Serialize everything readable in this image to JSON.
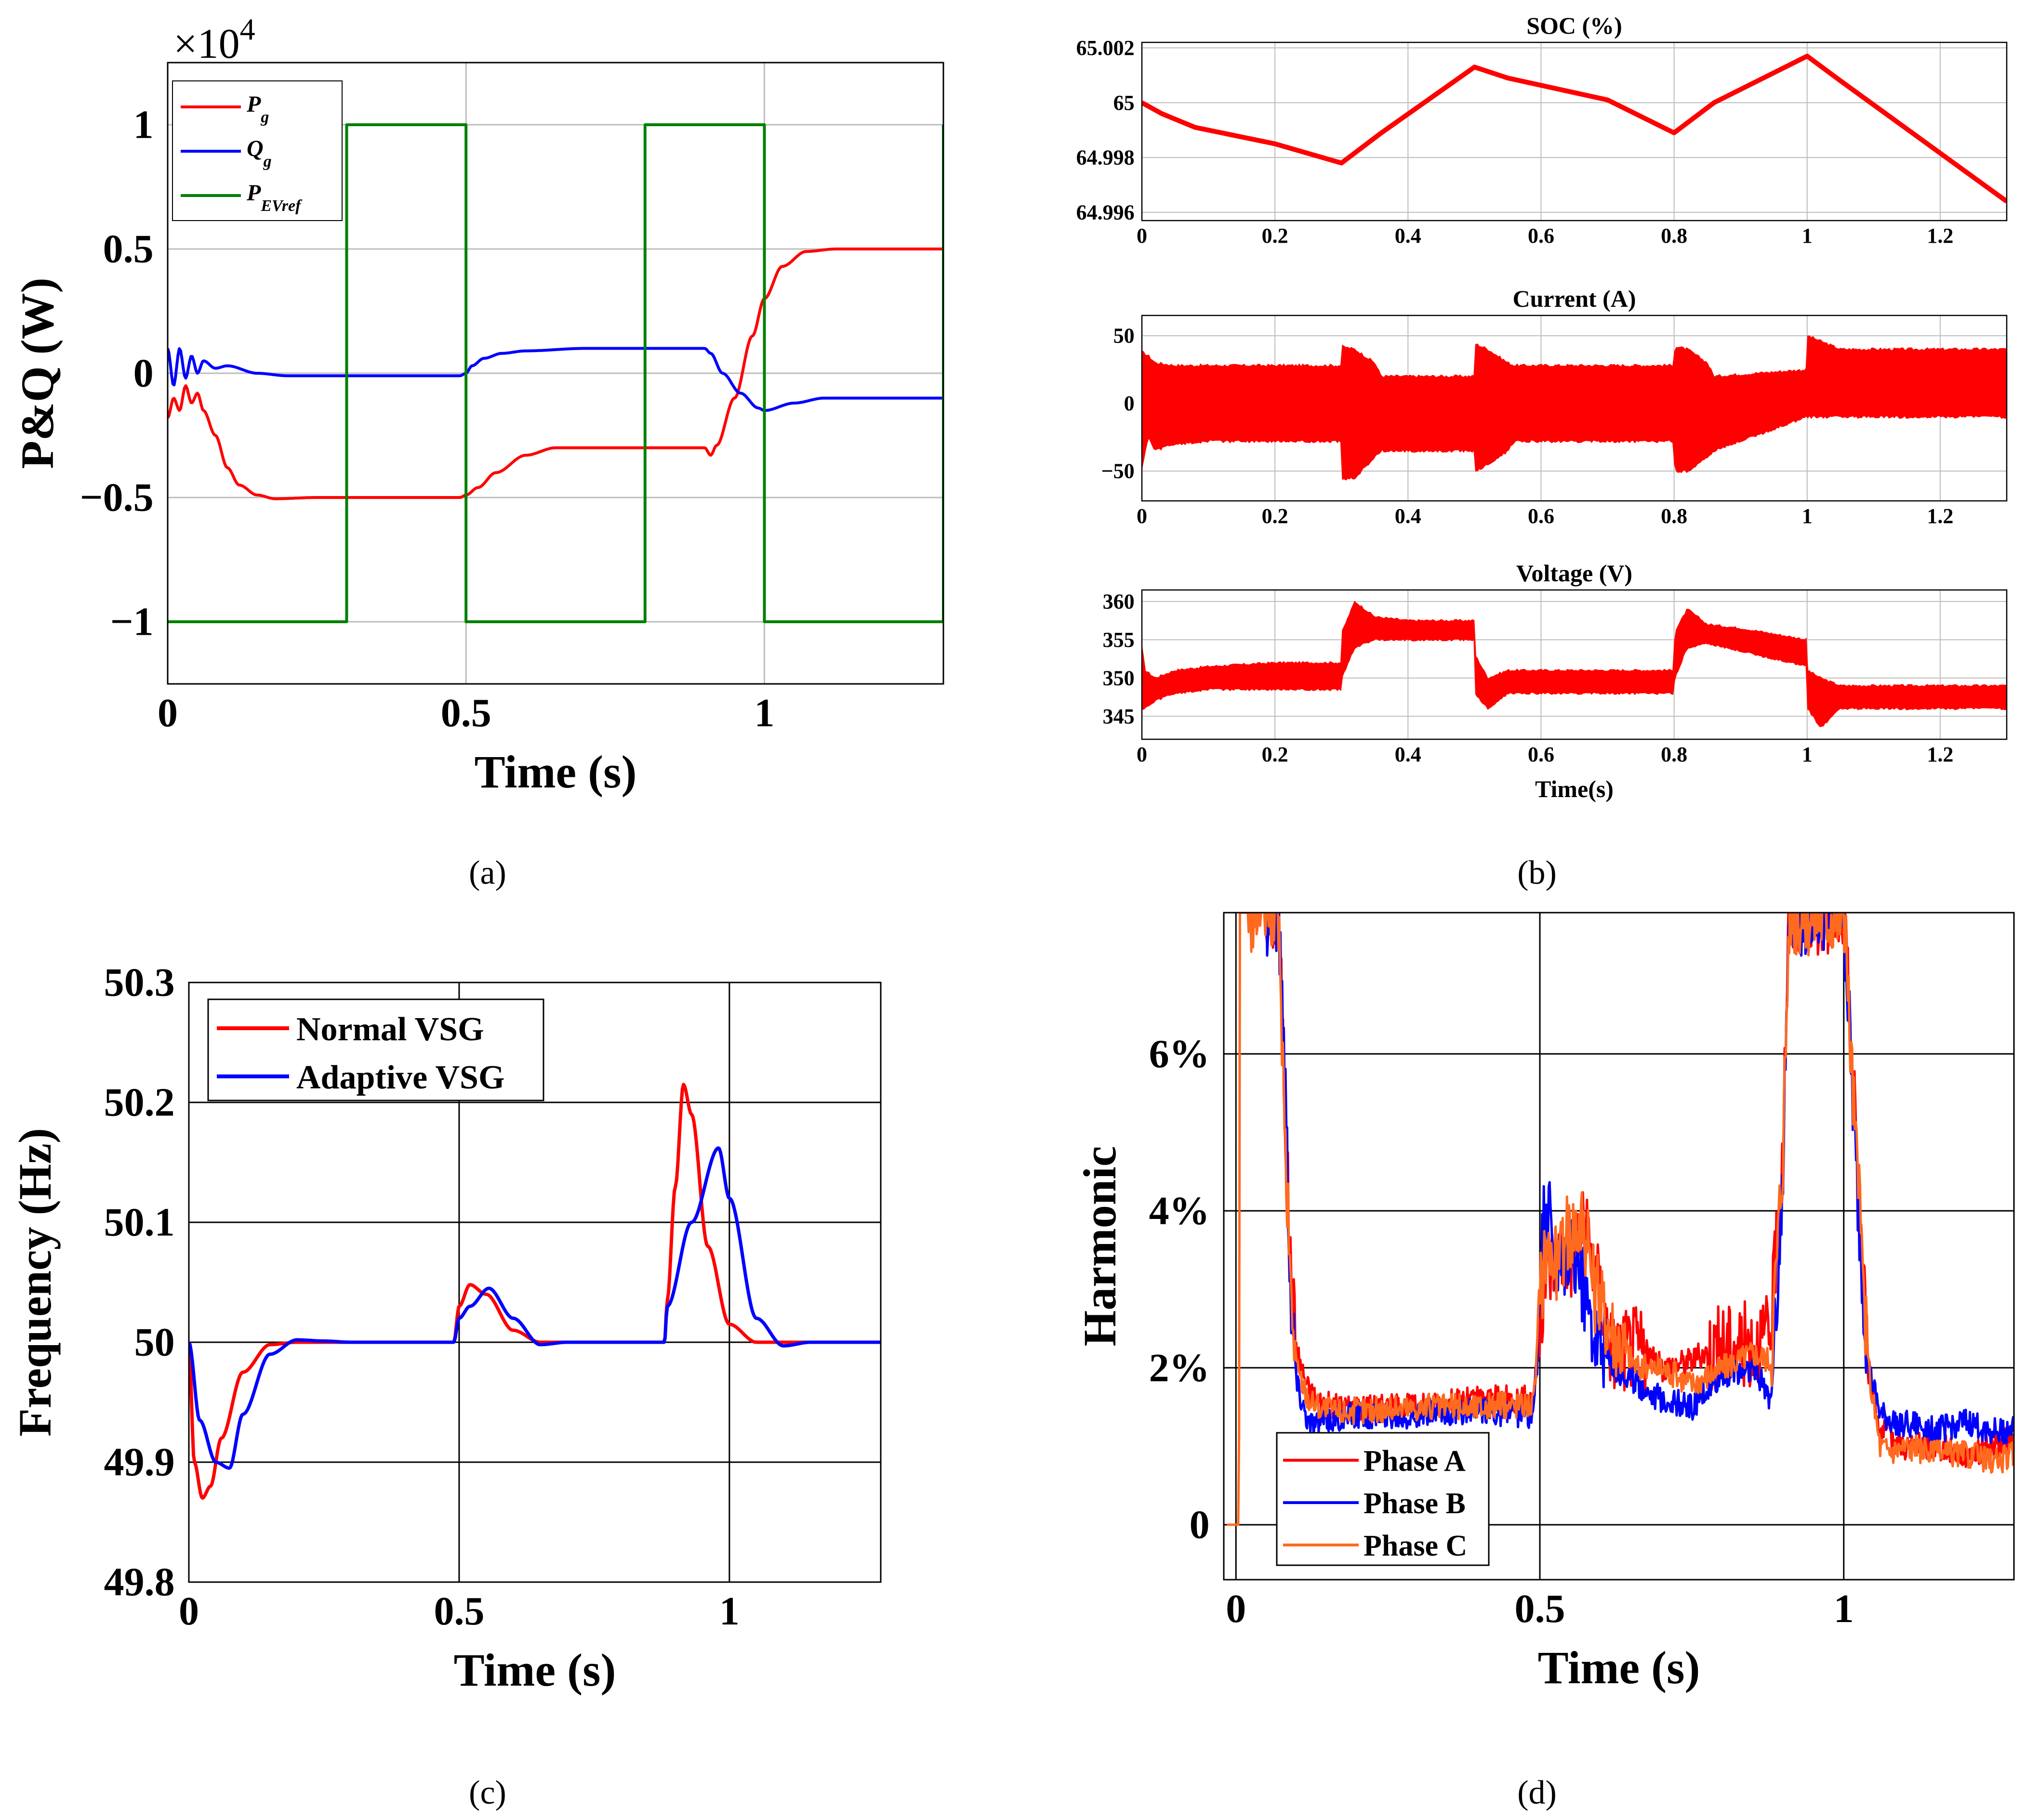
{
  "panel_labels": [
    "(a)",
    "(b)",
    "(c)",
    "(d)"
  ],
  "colors": {
    "red": "#ff0000",
    "blue": "#0000ff",
    "green": "#008000",
    "orange": "#ff6a1f",
    "axis": "#000000",
    "grid": "#bdbdbd"
  },
  "chart_data": [
    {
      "id": "a",
      "type": "line",
      "title": "",
      "xlabel": "Time (s)",
      "ylabel": "P&Q (W)",
      "exponent_label": "×10",
      "exponent_power": "4",
      "xlim": [
        0,
        1.3
      ],
      "ylim": [
        -1.25,
        1.25
      ],
      "xticks": [
        0,
        0.5,
        1
      ],
      "xtick_labels": [
        "0",
        "0.5",
        "1"
      ],
      "yticks": [
        -1,
        -0.5,
        0,
        0.5,
        1
      ],
      "ytick_labels": [
        "−1",
        "−0.5",
        "0",
        "0.5",
        "1"
      ],
      "grid": true,
      "legend_position": "top-left",
      "series": [
        {
          "name": "P_g",
          "label_main": "P",
          "label_sub": "g",
          "color": "#ff0000",
          "style": "smooth",
          "x": [
            0,
            0.01,
            0.02,
            0.03,
            0.04,
            0.05,
            0.06,
            0.08,
            0.1,
            0.12,
            0.15,
            0.18,
            0.25,
            0.35,
            0.45,
            0.49,
            0.5,
            0.52,
            0.55,
            0.6,
            0.65,
            0.75,
            0.85,
            0.9,
            0.91,
            0.92,
            0.95,
            0.98,
            1.0,
            1.03,
            1.07,
            1.12,
            1.2,
            1.3
          ],
          "y": [
            -0.18,
            -0.1,
            -0.15,
            -0.05,
            -0.12,
            -0.08,
            -0.15,
            -0.25,
            -0.38,
            -0.45,
            -0.49,
            -0.505,
            -0.5,
            -0.5,
            -0.5,
            -0.5,
            -0.49,
            -0.46,
            -0.4,
            -0.33,
            -0.3,
            -0.3,
            -0.3,
            -0.3,
            -0.33,
            -0.29,
            -0.1,
            0.15,
            0.3,
            0.43,
            0.49,
            0.5,
            0.5,
            0.5
          ]
        },
        {
          "name": "Q_g",
          "label_main": "Q",
          "label_sub": "g",
          "color": "#0000ff",
          "style": "smooth",
          "x": [
            0,
            0.01,
            0.02,
            0.03,
            0.04,
            0.05,
            0.06,
            0.08,
            0.1,
            0.15,
            0.2,
            0.3,
            0.4,
            0.49,
            0.5,
            0.51,
            0.53,
            0.56,
            0.6,
            0.7,
            0.8,
            0.9,
            0.91,
            0.93,
            0.96,
            0.99,
            1.0,
            1.05,
            1.1,
            1.2,
            1.3
          ],
          "y": [
            0.1,
            -0.05,
            0.1,
            -0.02,
            0.07,
            0.0,
            0.05,
            0.02,
            0.03,
            0.0,
            -0.01,
            -0.01,
            -0.01,
            -0.01,
            0.0,
            0.03,
            0.06,
            0.08,
            0.09,
            0.1,
            0.1,
            0.1,
            0.08,
            0.0,
            -0.08,
            -0.14,
            -0.15,
            -0.12,
            -0.1,
            -0.1,
            -0.1
          ]
        },
        {
          "name": "P_EVref",
          "label_main": "P",
          "label_sub": "EVref",
          "color": "#008000",
          "style": "step",
          "x": [
            0,
            0.3,
            0.3,
            0.5,
            0.5,
            0.8,
            0.8,
            1.0,
            1.0,
            1.3,
            1.3
          ],
          "y": [
            -1,
            -1,
            1,
            1,
            -1,
            -1,
            1,
            1,
            -1,
            -1,
            1
          ]
        }
      ]
    },
    {
      "id": "b1",
      "type": "line",
      "title": "SOC (%)",
      "xlabel": "",
      "ylabel": "",
      "xlim": [
        0,
        1.3
      ],
      "ylim": [
        64.9957,
        65.0022
      ],
      "xticks": [
        0,
        0.2,
        0.4,
        0.6,
        0.8,
        1,
        1.2
      ],
      "xtick_labels": [
        "0",
        "0.2",
        "0.4",
        "0.6",
        "0.8",
        "1",
        "1.2"
      ],
      "yticks": [
        64.996,
        64.998,
        65,
        65.002
      ],
      "ytick_labels": [
        "64.996",
        "64.998",
        "65",
        "65.002"
      ],
      "grid": true,
      "series": [
        {
          "name": "SOC",
          "color": "#ff0000",
          "style": "linear",
          "x": [
            0,
            0.03,
            0.08,
            0.2,
            0.3,
            0.36,
            0.5,
            0.55,
            0.7,
            0.8,
            0.86,
            1.0,
            1.05,
            1.3
          ],
          "y": [
            65.0,
            64.9996,
            64.9991,
            64.9985,
            64.9978,
            64.9989,
            65.0013,
            65.0009,
            65.0001,
            64.9989,
            65.0,
            65.0017,
            65.0008,
            64.9964
          ]
        }
      ]
    },
    {
      "id": "b2",
      "type": "area",
      "title": "Current (A)",
      "xlabel": "",
      "ylabel": "",
      "xlim": [
        0,
        1.3
      ],
      "ylim": [
        -72,
        65
      ],
      "xticks": [
        0,
        0.2,
        0.4,
        0.6,
        0.8,
        1,
        1.2
      ],
      "xtick_labels": [
        "0",
        "0.2",
        "0.4",
        "0.6",
        "0.8",
        "1",
        "1.2"
      ],
      "yticks": [
        -50,
        0,
        50
      ],
      "ytick_labels": [
        "−50",
        "0",
        "50"
      ],
      "grid": true,
      "series": [
        {
          "name": "Current band",
          "color": "#ff0000",
          "x": [
            0,
            0.01,
            0.02,
            0.05,
            0.1,
            0.3,
            0.301,
            0.32,
            0.35,
            0.36,
            0.5,
            0.501,
            0.52,
            0.55,
            0.56,
            0.8,
            0.801,
            0.82,
            0.85,
            0.86,
            1.0,
            1.001,
            1.02,
            1.05,
            1.06,
            1.3
          ],
          "upper": [
            38,
            35,
            30,
            28,
            28,
            28,
            42,
            40,
            30,
            20,
            20,
            44,
            40,
            30,
            28,
            28,
            42,
            40,
            30,
            20,
            25,
            50,
            46,
            40,
            40,
            40
          ],
          "lower": [
            -47,
            -25,
            -35,
            -30,
            -28,
            -28,
            -57,
            -55,
            -40,
            -35,
            -35,
            -50,
            -45,
            -35,
            -28,
            -28,
            -50,
            -50,
            -40,
            -35,
            -10,
            -10,
            -10,
            -10,
            -10,
            -10
          ]
        }
      ]
    },
    {
      "id": "b3",
      "type": "area",
      "title": "Voltage (V)",
      "xlabel": "Time(s)",
      "ylabel": "",
      "xlim": [
        0,
        1.3
      ],
      "ylim": [
        342,
        361.5
      ],
      "xticks": [
        0,
        0.2,
        0.4,
        0.6,
        0.8,
        1,
        1.2
      ],
      "xtick_labels": [
        "0",
        "0.2",
        "0.4",
        "0.6",
        "0.8",
        "1",
        "1.2"
      ],
      "yticks": [
        345,
        350,
        355,
        360
      ],
      "ytick_labels": [
        "345",
        "350",
        "355",
        "360"
      ],
      "grid": true,
      "series": [
        {
          "name": "Voltage band",
          "color": "#ff0000",
          "x": [
            0,
            0.005,
            0.02,
            0.05,
            0.1,
            0.2,
            0.3,
            0.301,
            0.32,
            0.35,
            0.4,
            0.5,
            0.501,
            0.52,
            0.55,
            0.6,
            0.8,
            0.801,
            0.82,
            0.85,
            0.9,
            1.0,
            1.001,
            1.02,
            1.05,
            1.1,
            1.3
          ],
          "upper": [
            354,
            351,
            350,
            351,
            351.5,
            352,
            352,
            356,
            360,
            358,
            357.5,
            357.5,
            353,
            350,
            351,
            351,
            351,
            356,
            359,
            357,
            356.5,
            355,
            351,
            350,
            349,
            349,
            349
          ],
          "lower": [
            346,
            346,
            347,
            348,
            348.5,
            348.5,
            348.5,
            350,
            354,
            355,
            355,
            355,
            348,
            346,
            348,
            348,
            348,
            350,
            354,
            354.5,
            353.5,
            351.5,
            346,
            343.5,
            346,
            346,
            346
          ]
        }
      ]
    },
    {
      "id": "c",
      "type": "line",
      "title": "",
      "xlabel": "Time (s)",
      "ylabel": "Frequency (Hz)",
      "xlim": [
        0,
        1.28
      ],
      "ylim": [
        49.8,
        50.3
      ],
      "xticks": [
        0,
        0.5,
        1
      ],
      "xtick_labels": [
        "0",
        "0.5",
        "1"
      ],
      "yticks": [
        49.8,
        49.9,
        50,
        50.1,
        50.2,
        50.3
      ],
      "ytick_labels": [
        "49.8",
        "49.9",
        "50",
        "50.1",
        "50.2",
        "50.3"
      ],
      "grid": true,
      "legend_position": "top-left",
      "series": [
        {
          "name": "Normal VSG",
          "color": "#ff0000",
          "style": "smooth",
          "x": [
            0,
            0.01,
            0.025,
            0.04,
            0.06,
            0.1,
            0.15,
            0.2,
            0.3,
            0.49,
            0.5,
            0.52,
            0.55,
            0.6,
            0.65,
            0.8,
            0.88,
            0.885,
            0.9,
            0.915,
            0.93,
            0.96,
            1.0,
            1.05,
            1.1,
            1.28
          ],
          "y": [
            50.0,
            49.9,
            49.87,
            49.88,
            49.92,
            49.975,
            49.998,
            50.0,
            50.0,
            50.0,
            50.03,
            50.048,
            50.04,
            50.01,
            50.0,
            50.0,
            50.0,
            50.035,
            50.13,
            50.215,
            50.19,
            50.08,
            50.015,
            50.0,
            50.0,
            50.0
          ]
        },
        {
          "name": "Adaptive VSG",
          "color": "#0000ff",
          "style": "smooth",
          "x": [
            0,
            0.02,
            0.05,
            0.075,
            0.1,
            0.15,
            0.2,
            0.25,
            0.3,
            0.49,
            0.5,
            0.52,
            0.555,
            0.6,
            0.65,
            0.7,
            0.88,
            0.885,
            0.93,
            0.98,
            1.0,
            1.05,
            1.1,
            1.15,
            1.28
          ],
          "y": [
            50.0,
            49.935,
            49.9,
            49.895,
            49.94,
            49.99,
            50.002,
            50.001,
            50.0,
            50.0,
            50.02,
            50.03,
            50.045,
            50.02,
            49.998,
            50.0,
            50.0,
            50.03,
            50.1,
            50.162,
            50.12,
            50.02,
            49.997,
            50.0,
            50.0
          ]
        }
      ]
    },
    {
      "id": "d",
      "type": "line",
      "title": "",
      "xlabel": "Time (s)",
      "ylabel": "Harmonic",
      "xlim": [
        -0.02,
        1.28
      ],
      "ylim": [
        -0.7,
        7.8
      ],
      "xticks": [
        0,
        0.5,
        1
      ],
      "xtick_labels": [
        "0",
        "0.5",
        "1"
      ],
      "yticks": [
        0,
        2,
        4,
        6
      ],
      "ytick_labels": [
        "0",
        "2%",
        "4%",
        "6%"
      ],
      "grid": true,
      "legend_position": "bottom-left",
      "series": [
        {
          "name": "Phase A",
          "color": "#ff0000",
          "style": "noisy",
          "x": [
            0.05,
            0.06,
            0.07,
            0.08,
            0.09,
            0.1,
            0.12,
            0.14,
            0.16,
            0.2,
            0.3,
            0.4,
            0.49,
            0.5,
            0.51,
            0.53,
            0.55,
            0.57,
            0.59,
            0.62,
            0.66,
            0.7,
            0.75,
            0.8,
            0.85,
            0.88,
            0.9,
            0.91,
            0.93,
            0.95,
            0.99,
            1.0,
            1.02,
            1.04,
            1.06,
            1.08,
            1.1,
            1.15,
            1.2,
            1.25,
            1.28
          ],
          "y": [
            7.8,
            7.8,
            7.8,
            5.5,
            3.2,
            2.2,
            1.7,
            1.55,
            1.5,
            1.5,
            1.5,
            1.6,
            1.6,
            2.5,
            3.2,
            3.5,
            3.4,
            3.8,
            3.3,
            2.2,
            2.3,
            2.0,
            2.1,
            2.3,
            2.3,
            2.4,
            5.0,
            7.8,
            7.8,
            7.8,
            7.8,
            7.8,
            5.0,
            2.0,
            1.2,
            1.1,
            1.0,
            1.0,
            0.9,
            1.0,
            1.1
          ]
        },
        {
          "name": "Phase B",
          "color": "#0000ff",
          "style": "noisy",
          "x": [
            0.05,
            0.06,
            0.07,
            0.08,
            0.09,
            0.1,
            0.12,
            0.14,
            0.16,
            0.2,
            0.3,
            0.4,
            0.49,
            0.5,
            0.51,
            0.53,
            0.55,
            0.57,
            0.59,
            0.62,
            0.66,
            0.7,
            0.75,
            0.8,
            0.85,
            0.88,
            0.9,
            0.91,
            0.93,
            0.95,
            0.99,
            1.0,
            1.02,
            1.04,
            1.06,
            1.08,
            1.1,
            1.15,
            1.2,
            1.25,
            1.28
          ],
          "y": [
            7.8,
            7.8,
            7.8,
            6.0,
            3.0,
            1.8,
            1.3,
            1.3,
            1.35,
            1.4,
            1.4,
            1.45,
            1.4,
            3.0,
            4.2,
            3.0,
            3.5,
            3.1,
            2.5,
            2.0,
            1.8,
            1.6,
            1.5,
            1.9,
            2.0,
            1.6,
            4.5,
            7.8,
            7.8,
            7.8,
            7.8,
            7.8,
            4.5,
            2.0,
            1.4,
            1.3,
            1.3,
            1.2,
            1.3,
            1.2,
            1.2
          ]
        },
        {
          "name": "Phase C",
          "color": "#ff6a1f",
          "style": "noisy",
          "x": [
            -0.015,
            0.0,
            0.005,
            0.006,
            0.007,
            0.03,
            0.05,
            0.06,
            0.07,
            0.08,
            0.09,
            0.1,
            0.12,
            0.14,
            0.16,
            0.2,
            0.3,
            0.4,
            0.49,
            0.5,
            0.51,
            0.53,
            0.55,
            0.57,
            0.59,
            0.62,
            0.66,
            0.7,
            0.75,
            0.8,
            0.85,
            0.88,
            0.9,
            0.91,
            0.93,
            0.95,
            0.99,
            1.0,
            1.02,
            1.04,
            1.06,
            1.08,
            1.1,
            1.15,
            1.2,
            1.25,
            1.28
          ],
          "y": [
            0,
            0,
            0,
            7.8,
            7.8,
            7.8,
            7.8,
            7.8,
            7.8,
            5.0,
            3.0,
            2.0,
            1.6,
            1.5,
            1.45,
            1.45,
            1.5,
            1.5,
            1.55,
            2.8,
            3.6,
            3.3,
            3.8,
            3.9,
            3.0,
            2.5,
            2.0,
            2.0,
            1.8,
            2.0,
            2.2,
            2.1,
            4.8,
            7.8,
            7.8,
            7.8,
            7.8,
            7.8,
            4.8,
            2.0,
            1.0,
            0.95,
            1.0,
            0.9,
            0.9,
            0.8,
            0.9
          ]
        }
      ]
    }
  ]
}
